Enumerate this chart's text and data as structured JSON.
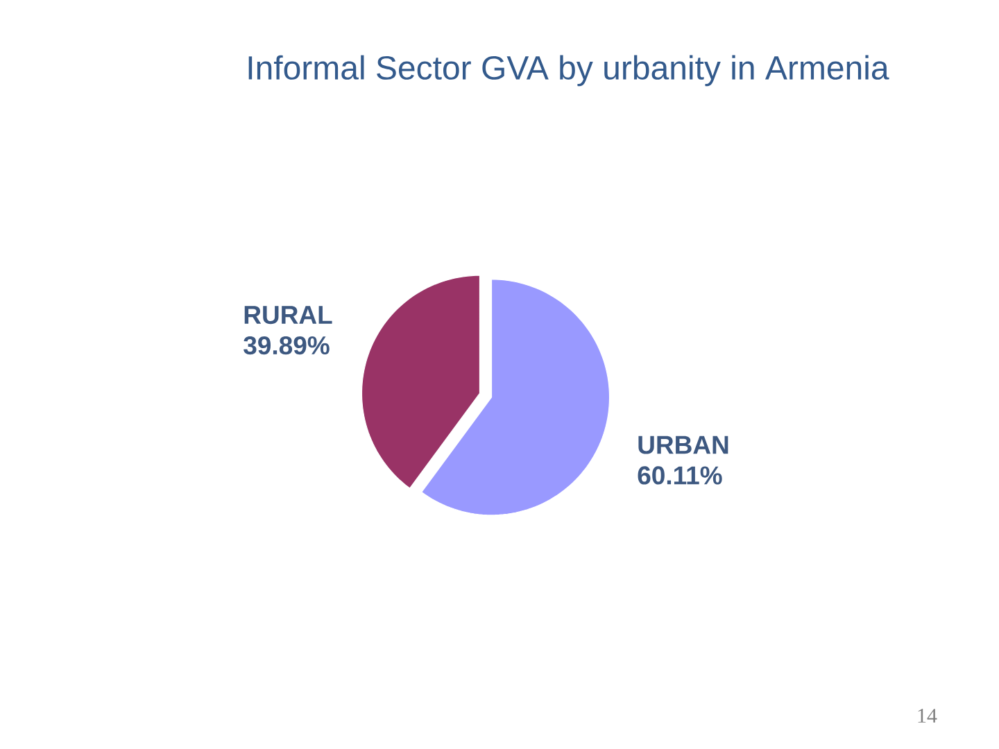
{
  "chart_data": {
    "type": "pie",
    "title": "Informal Sector GVA by urbanity in Armenia",
    "categories": [
      "URBAN",
      "RURAL"
    ],
    "values": [
      60.11,
      39.89
    ],
    "colors": [
      "#9999ff",
      "#993366"
    ],
    "value_labels": [
      "60.11%",
      "39.89%"
    ],
    "annotations": [
      "14"
    ]
  }
}
